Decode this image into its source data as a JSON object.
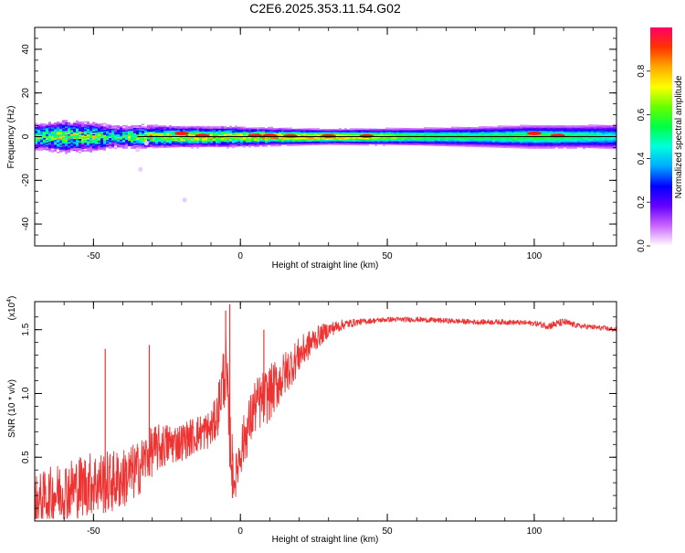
{
  "title": "C2E6.2025.353.11.54.G02",
  "chart_data": [
    {
      "type": "heatmap",
      "xlabel": "Height of straight line (km)",
      "ylabel": "Frequency (Hz)",
      "xlim": [
        -70,
        128
      ],
      "ylim": [
        -50,
        50
      ],
      "xticks": [
        -50,
        0,
        50,
        100
      ],
      "yticks": [
        -40,
        -20,
        0,
        20,
        40
      ],
      "xtick_labels": [
        "-50",
        "0",
        "50",
        "100"
      ],
      "ytick_labels": [
        "-40",
        "-20",
        "0",
        "20",
        "40"
      ],
      "colorbar": {
        "label": "Normalized spectral amplitude",
        "range": [
          0,
          1
        ],
        "ticks": [
          "0.0",
          "0.2",
          "0.4",
          "0.6",
          "0.8"
        ],
        "stops": [
          "#ffffff",
          "#cc66ff",
          "#6600ff",
          "#0000ff",
          "#00aaff",
          "#00ffdd",
          "#00ff44",
          "#66ff00",
          "#ffff00",
          "#ffaa00",
          "#ff3300",
          "#ff0066"
        ]
      },
      "band": [
        {
          "x": -68,
          "halfwidth": 4.5,
          "amplitude": 0.55
        },
        {
          "x": -60,
          "halfwidth": 5.5,
          "amplitude": 0.6
        },
        {
          "x": -50,
          "halfwidth": 5,
          "amplitude": 0.55
        },
        {
          "x": -42,
          "halfwidth": 4,
          "amplitude": 0.45
        },
        {
          "x": -33,
          "halfwidth": 4,
          "amplitude": 0.6
        },
        {
          "x": -20,
          "halfwidth": 3.5,
          "amplitude": 0.75
        },
        {
          "x": -5,
          "halfwidth": 3.5,
          "amplitude": 0.7
        },
        {
          "x": 10,
          "halfwidth": 3,
          "amplitude": 0.75
        },
        {
          "x": 30,
          "halfwidth": 2.5,
          "amplitude": 0.85
        },
        {
          "x": 60,
          "halfwidth": 3,
          "amplitude": 0.6
        },
        {
          "x": 80,
          "halfwidth": 3.5,
          "amplitude": 0.55
        },
        {
          "x": 100,
          "halfwidth": 4,
          "amplitude": 0.6
        },
        {
          "x": 115,
          "halfwidth": 4,
          "amplitude": 0.55
        },
        {
          "x": 128,
          "halfwidth": 4.5,
          "amplitude": 0.45
        }
      ],
      "peaks": [
        {
          "x": -20,
          "freq": 1.5
        },
        {
          "x": -13,
          "freq": 0.5
        },
        {
          "x": 5,
          "freq": 0.5
        },
        {
          "x": 10,
          "freq": 0.5
        },
        {
          "x": 17,
          "freq": 0.3
        },
        {
          "x": 30,
          "freq": 0.3
        },
        {
          "x": 43,
          "freq": 0.3
        },
        {
          "x": 100,
          "freq": 1.5
        },
        {
          "x": 108,
          "freq": 0.5
        }
      ],
      "outliers": [
        {
          "x": -32,
          "freq": -3
        },
        {
          "x": -35,
          "freq": -6
        },
        {
          "x": -34,
          "freq": -15
        },
        {
          "x": -19,
          "freq": -29
        }
      ]
    },
    {
      "type": "line",
      "xlabel": "Height of straight line (km)",
      "ylabel": "SNR (10 * v/v)",
      "multiplier_label": "(x10",
      "multiplier_exp": "4",
      "multiplier_close": ")",
      "xlim": [
        -70,
        128
      ],
      "ylim": [
        0,
        1.72
      ],
      "xticks": [
        -50,
        0,
        50,
        100
      ],
      "yticks": [
        0.5,
        1.0,
        1.5
      ],
      "xtick_labels": [
        "-50",
        "0",
        "50",
        "100"
      ],
      "ytick_labels": [
        "0.5",
        "1.0",
        "1.5"
      ],
      "color": "#ee3333",
      "series": {
        "x": [
          -70,
          -65,
          -60,
          -55,
          -50,
          -45,
          -40,
          -35,
          -32,
          -30,
          -25,
          -20,
          -15,
          -10,
          -8,
          -6,
          -5,
          -4,
          -3,
          -2,
          0,
          5,
          10,
          15,
          20,
          25,
          30,
          35,
          40,
          45,
          50,
          60,
          70,
          80,
          90,
          100,
          105,
          110,
          115,
          120,
          128
        ],
        "y": [
          0.15,
          0.2,
          0.24,
          0.27,
          0.3,
          0.3,
          0.33,
          0.4,
          0.5,
          0.55,
          0.6,
          0.62,
          0.68,
          0.72,
          0.82,
          1.1,
          1.2,
          0.8,
          0.5,
          0.3,
          0.55,
          0.9,
          1.0,
          1.15,
          1.3,
          1.42,
          1.5,
          1.54,
          1.56,
          1.57,
          1.58,
          1.58,
          1.57,
          1.56,
          1.56,
          1.55,
          1.53,
          1.56,
          1.53,
          1.52,
          1.5
        ],
        "noise": [
          0.2,
          0.22,
          0.24,
          0.25,
          0.25,
          0.25,
          0.24,
          0.22,
          0.2,
          0.2,
          0.17,
          0.15,
          0.15,
          0.15,
          0.18,
          0.25,
          0.3,
          0.3,
          0.25,
          0.15,
          0.2,
          0.22,
          0.22,
          0.18,
          0.14,
          0.1,
          0.06,
          0.04,
          0.025,
          0.02,
          0.02,
          0.02,
          0.02,
          0.02,
          0.02,
          0.02,
          0.03,
          0.03,
          0.02,
          0.02,
          0.02
        ]
      },
      "spikes": [
        {
          "x": -46,
          "y": 1.35
        },
        {
          "x": -31,
          "y": 1.38
        },
        {
          "x": -5,
          "y": 1.65
        },
        {
          "x": -3.6,
          "y": 1.7
        },
        {
          "x": -2.7,
          "y": 0.18
        },
        {
          "x": 8,
          "y": 1.5
        }
      ]
    }
  ]
}
